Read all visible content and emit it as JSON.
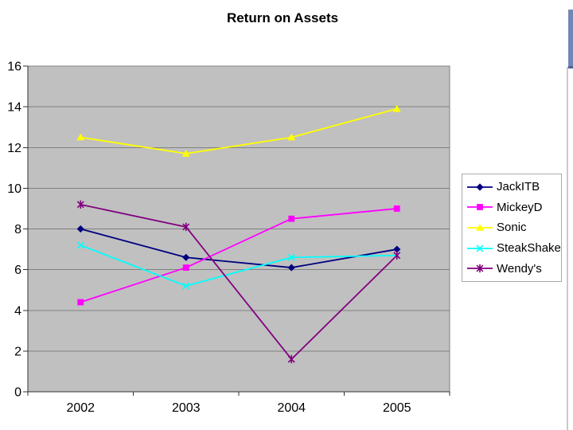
{
  "slide": {
    "title": "Return on Assets"
  },
  "chart_data": {
    "type": "line",
    "title": "Return on Assets",
    "categories": [
      "2002",
      "2003",
      "2004",
      "2005"
    ],
    "series": [
      {
        "name": "JackITB",
        "color": "#000080",
        "marker": "diamond",
        "values": [
          8.0,
          6.6,
          6.1,
          7.0
        ]
      },
      {
        "name": "MickeyD",
        "color": "#ff00ff",
        "marker": "square",
        "values": [
          4.4,
          6.1,
          8.5,
          9.0
        ]
      },
      {
        "name": "Sonic",
        "color": "#ffff00",
        "marker": "triangle",
        "values": [
          12.5,
          11.7,
          12.5,
          13.9
        ]
      },
      {
        "name": "SteakShake",
        "color": "#00ffff",
        "marker": "x",
        "values": [
          7.2,
          5.2,
          6.6,
          6.7
        ]
      },
      {
        "name": "Wendy's",
        "color": "#800080",
        "marker": "star",
        "values": [
          9.2,
          8.1,
          1.6,
          6.7
        ]
      }
    ],
    "xlabel": "",
    "ylabel": "",
    "ylim": [
      0,
      16
    ],
    "yticks": [
      0,
      2,
      4,
      6,
      8,
      10,
      12,
      14,
      16
    ],
    "grid": true,
    "legend_position": "right",
    "plot_bg_color": "#c0c0c0",
    "gridline_color": "#808080",
    "axis_color": "#333333",
    "tick_label_color": "#000000"
  },
  "decor": {
    "divider_color": "#c9c9c9",
    "scrollbar_color": "#7288b4"
  }
}
